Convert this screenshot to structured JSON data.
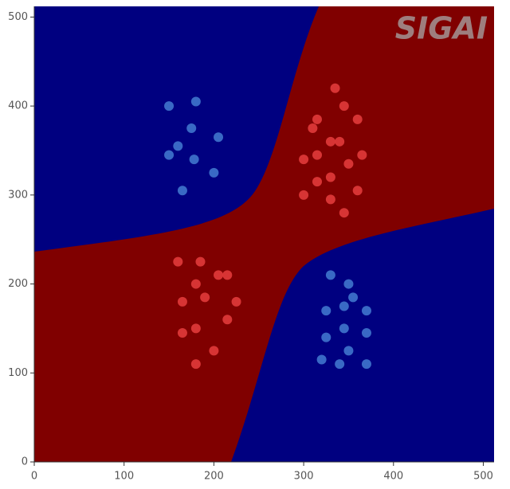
{
  "chart_data": {
    "type": "scatter",
    "watermark": "SIGAI",
    "xlim": [
      0,
      512
    ],
    "ylim": [
      0,
      512
    ],
    "xticks": [
      0,
      100,
      200,
      300,
      400,
      500
    ],
    "yticks": [
      0,
      100,
      200,
      300,
      400,
      500
    ],
    "series": [
      {
        "color": "#3f74cc",
        "x": [
          150,
          180,
          175,
          205,
          160,
          150,
          178,
          200,
          165,
          330,
          350,
          355,
          345,
          325,
          370,
          345,
          370,
          325,
          350,
          320,
          340,
          370
        ],
        "values": [
          400,
          405,
          375,
          365,
          355,
          345,
          340,
          325,
          305,
          210,
          200,
          185,
          175,
          170,
          170,
          150,
          145,
          140,
          125,
          115,
          110,
          110
        ]
      },
      {
        "color": "#e03a3a",
        "x": [
          335,
          345,
          315,
          360,
          310,
          330,
          340,
          315,
          365,
          300,
          350,
          330,
          315,
          300,
          360,
          330,
          345,
          160,
          185,
          205,
          215,
          180,
          190,
          165,
          225,
          215,
          180,
          165,
          200,
          180
        ],
        "values": [
          420,
          400,
          385,
          385,
          375,
          360,
          360,
          345,
          345,
          340,
          335,
          320,
          315,
          300,
          305,
          295,
          280,
          225,
          225,
          210,
          210,
          200,
          185,
          180,
          180,
          160,
          150,
          145,
          125,
          110
        ]
      }
    ]
  }
}
